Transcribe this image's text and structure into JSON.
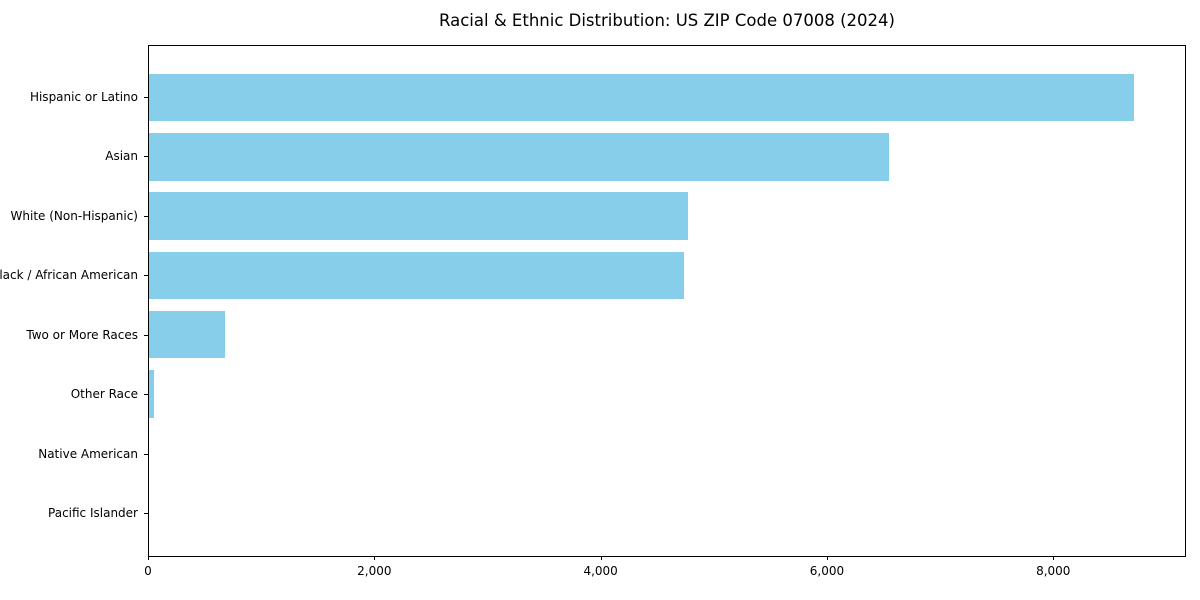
{
  "chart_data": {
    "type": "bar",
    "orientation": "horizontal",
    "title": "Racial & Ethnic Distribution: US ZIP Code 07008 (2024)",
    "categories": [
      "Hispanic or Latino",
      "Asian",
      "White (Non-Hispanic)",
      "Black / African American",
      "Two or More Races",
      "Other Race",
      "Native American",
      "Pacific Islander"
    ],
    "values": [
      8725,
      6550,
      4770,
      4740,
      670,
      45,
      0,
      0
    ],
    "bar_color": "#87CEEB",
    "xlabel": "",
    "ylabel": "",
    "xlim": [
      0,
      9173
    ],
    "x_ticks": [
      0,
      2000,
      4000,
      6000,
      8000
    ],
    "x_tick_labels": [
      "0",
      "2,000",
      "4,000",
      "6,000",
      "8,000"
    ],
    "grid": false,
    "legend": null,
    "frame_color": "#000000",
    "background_color": "#ffffff"
  }
}
